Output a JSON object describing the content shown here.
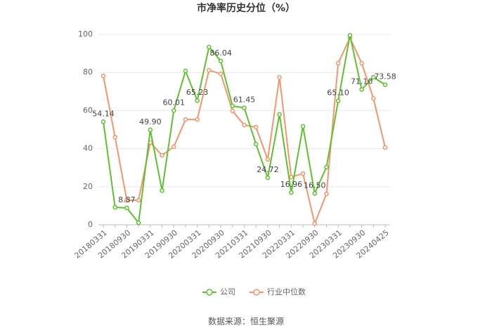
{
  "chart_data": {
    "type": "line",
    "title": "市净率历史分位（%）",
    "categories": [
      "20180331",
      null,
      "20180930",
      null,
      "20190331",
      null,
      "20190930",
      null,
      "20200331",
      null,
      "20200930",
      null,
      "20210331",
      null,
      "20210930",
      null,
      "20220331",
      null,
      "20220930",
      null,
      "20230331",
      null,
      "20230930",
      null,
      "20240425"
    ],
    "series": [
      {
        "name": "公司",
        "color": "#5ec12f",
        "values": [
          54.14,
          9.2,
          8.87,
          1.1,
          49.9,
          18,
          60.01,
          80.8,
          65.23,
          93.4,
          86.04,
          62.4,
          61.45,
          42.4,
          24.72,
          58,
          16.96,
          51.7,
          16.5,
          30.3,
          65.1,
          99.6,
          71.1,
          77.5,
          73.58
        ],
        "value_labels": [
          "54.14",
          null,
          "8.87",
          null,
          "49.90",
          null,
          "60.01",
          null,
          "65.23",
          null,
          "86.04",
          null,
          "61.45",
          null,
          "24.72",
          null,
          "16.96",
          null,
          "16.50",
          null,
          "65.10",
          null,
          "71.10",
          null,
          "73.58"
        ]
      },
      {
        "name": "行业中位数",
        "color": "#f5956b",
        "values": [
          78.2,
          46,
          12.9,
          12.9,
          43.2,
          36.5,
          41,
          55.3,
          55.3,
          81.2,
          79.3,
          59.8,
          52.4,
          51.3,
          34.3,
          77.5,
          25.1,
          26.9,
          0.7,
          16.2,
          84.9,
          98.2,
          84.9,
          66.4,
          40.6
        ]
      }
    ],
    "ylim": [
      0,
      100
    ],
    "yticks": [
      0,
      20,
      40,
      60,
      80,
      100
    ],
    "grid": true,
    "source": "数据来源：恒生聚源"
  }
}
